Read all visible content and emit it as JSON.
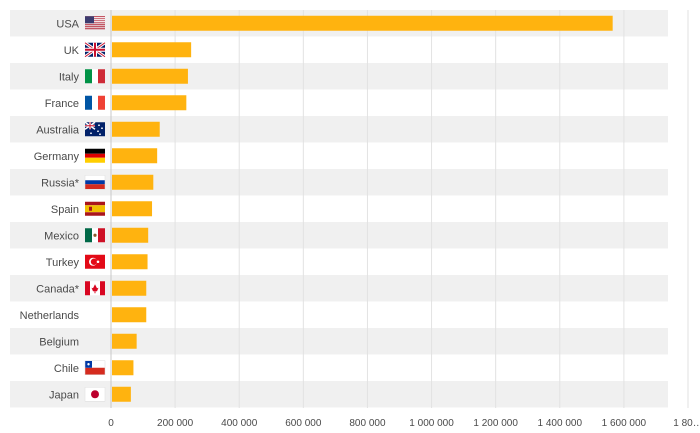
{
  "chart_data": {
    "type": "bar",
    "orientation": "horizontal",
    "categories": [
      "USA",
      "UK",
      "Italy",
      "France",
      "Australia",
      "Germany",
      "Russia*",
      "Spain",
      "Mexico",
      "Turkey",
      "Canada*",
      "Netherlands",
      "Belgium",
      "Chile",
      "Japan"
    ],
    "flags": [
      "flag-usa-icon",
      "flag-uk-icon",
      "flag-italy-icon",
      "flag-france-icon",
      "flag-australia-icon",
      "flag-germany-icon",
      "flag-russia-icon",
      "flag-spain-icon",
      "flag-mexico-icon",
      "flag-turkey-icon",
      "flag-canada-icon",
      "",
      "",
      "flag-chile-icon",
      "flag-japan-icon"
    ],
    "values": [
      1565000,
      250000,
      240000,
      235000,
      152000,
      144000,
      132000,
      128000,
      116000,
      114000,
      110000,
      110000,
      80000,
      70000,
      62000
    ],
    "xlim": [
      0,
      1800000
    ],
    "x_ticks": [
      0,
      200000,
      400000,
      600000,
      800000,
      1000000,
      1200000,
      1400000,
      1600000,
      1800000
    ],
    "x_tick_labels": [
      "0",
      "200 000",
      "400 000",
      "600 000",
      "800 000",
      "1 000 000",
      "1 200 000",
      "1 400 000",
      "1 600 000",
      "1 80…"
    ],
    "grid": true,
    "bar_color": "#FFB30F",
    "stripe_color": "#F0F0F0"
  }
}
